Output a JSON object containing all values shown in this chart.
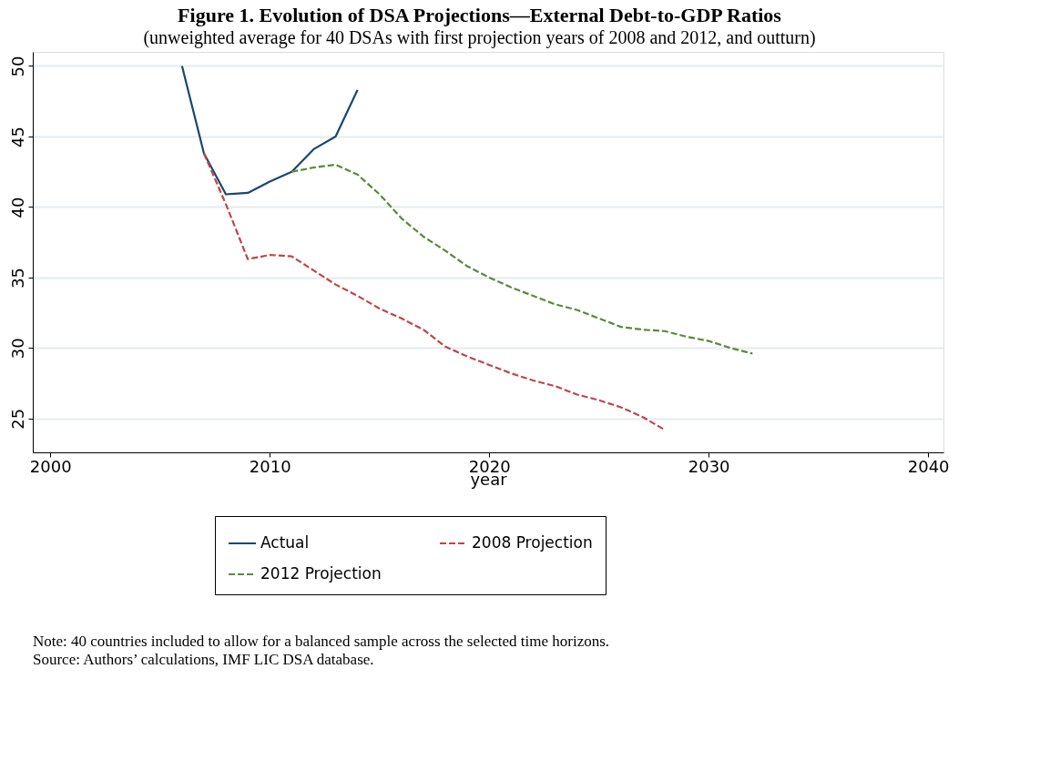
{
  "chart_data": {
    "type": "line",
    "title": "Figure 1. Evolution of DSA Projections—External Debt-to-GDP Ratios",
    "subtitle": "(unweighted average for 40 DSAs with first projection years of 2008 and 2012, and outturn)",
    "xlabel": "year",
    "xlim": [
      1999.2,
      2040.7
    ],
    "xticks": [
      2000,
      2010,
      2020,
      2030,
      2040
    ],
    "ylim": [
      22.6,
      51
    ],
    "yticks": [
      25,
      30,
      35,
      40,
      45,
      50
    ],
    "grid": "y",
    "legend": "bottom",
    "marker": "none",
    "series": [
      {
        "name": "Actual",
        "color": "#1a476f",
        "line_style": "solid",
        "x": [
          2006,
          2007,
          2008,
          2009,
          2010,
          2011,
          2012,
          2013,
          2014
        ],
        "values": [
          50.0,
          43.8,
          40.9,
          41.0,
          41.8,
          42.5,
          44.1,
          45.0,
          48.3
        ]
      },
      {
        "name": "2008 Projection",
        "color": "#c0454a",
        "line_style": "dashed",
        "x": [
          2007,
          2008,
          2009,
          2010,
          2011,
          2012,
          2013,
          2014,
          2015,
          2016,
          2017,
          2018,
          2019,
          2020,
          2021,
          2022,
          2023,
          2024,
          2025,
          2026,
          2027,
          2028
        ],
        "values": [
          43.8,
          40.2,
          36.3,
          36.6,
          36.5,
          35.5,
          34.5,
          33.7,
          32.8,
          32.1,
          31.3,
          30.1,
          29.4,
          28.8,
          28.2,
          27.7,
          27.3,
          26.7,
          26.3,
          25.8,
          25.1,
          24.2
        ]
      },
      {
        "name": "2012 Projection",
        "color": "#5a8a3a",
        "line_style": "dashed",
        "x": [
          2011,
          2012,
          2013,
          2014,
          2015,
          2016,
          2017,
          2018,
          2019,
          2020,
          2021,
          2022,
          2023,
          2024,
          2025,
          2026,
          2027,
          2028,
          2029,
          2030,
          2031,
          2032
        ],
        "values": [
          42.5,
          42.8,
          43.0,
          42.3,
          40.9,
          39.2,
          37.9,
          36.9,
          35.8,
          35.0,
          34.3,
          33.7,
          33.1,
          32.7,
          32.1,
          31.5,
          31.3,
          31.2,
          30.8,
          30.5,
          30.0,
          29.6
        ]
      }
    ],
    "annotations": [
      "Note: 40 countries included to allow for a balanced sample across the selected time horizons.",
      "Source: Authors’ calculations, IMF LIC DSA database."
    ]
  }
}
